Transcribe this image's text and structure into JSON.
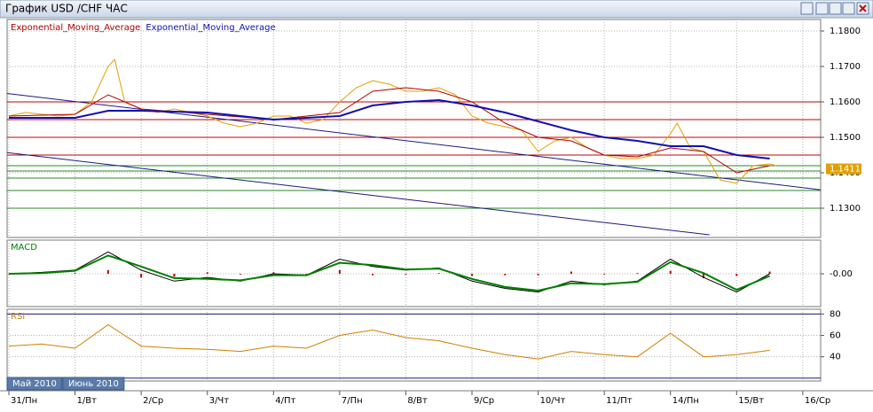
{
  "window": {
    "title": "График USD /CHF  ЧАС"
  },
  "period_tabs": [
    "Май 2010",
    "Июнь 2010"
  ],
  "chart_data": [
    {
      "type": "line",
      "xlim": [
        0,
        12.27
      ],
      "ylim": [
        1.1225,
        1.1825
      ],
      "yticks": [
        {
          "value": 1.13,
          "label": "1.1300"
        },
        {
          "value": 1.14,
          "label": "1.1400"
        },
        {
          "value": 1.15,
          "label": "1.1500"
        },
        {
          "value": 1.16,
          "label": "1.1600"
        },
        {
          "value": 1.17,
          "label": "1.1700"
        },
        {
          "value": 1.18,
          "label": "1.1800"
        }
      ],
      "last_price": {
        "value": 1.1411,
        "label": "1.1411"
      },
      "hlines": [
        {
          "value": 1.16,
          "color": "#c00000"
        },
        {
          "value": 1.155,
          "color": "#c00000"
        },
        {
          "value": 1.15,
          "color": "#c00000"
        },
        {
          "value": 1.145,
          "color": "#c00000"
        },
        {
          "value": 1.142,
          "color": "#2a8a2a"
        },
        {
          "value": 1.1405,
          "color": "#2a8a2a"
        },
        {
          "value": 1.1385,
          "color": "#2a8a2a"
        },
        {
          "value": 1.135,
          "color": "#2a8a2a"
        },
        {
          "value": 1.13,
          "color": "#2a8a2a"
        }
      ],
      "trendlines": [
        {
          "x": [
            -0.13,
            12.27
          ],
          "values": [
            1.1626,
            1.1352
          ],
          "color": "#1a1a80"
        },
        {
          "x": [
            -0.13,
            10.59
          ],
          "values": [
            1.1459,
            1.1225
          ],
          "color": "#1a1a80"
        }
      ],
      "series": [
        {
          "color": "#e0a000",
          "width": 1,
          "x": [
            0,
            0.25,
            0.5,
            0.75,
            1,
            1.25,
            1.5,
            1.6,
            1.75,
            2,
            2.25,
            2.5,
            2.75,
            3,
            3.25,
            3.5,
            3.75,
            4,
            4.25,
            4.5,
            4.75,
            5,
            5.25,
            5.5,
            5.75,
            6,
            6.25,
            6.5,
            6.75,
            7,
            7.25,
            7.5,
            7.75,
            8,
            8.25,
            8.5,
            8.75,
            9,
            9.25,
            9.5,
            9.75,
            10,
            10.1,
            10.3,
            10.5,
            10.75,
            11,
            11.25,
            11.5,
            11.6
          ],
          "values": [
            1.156,
            1.157,
            1.1565,
            1.156,
            1.1565,
            1.16,
            1.17,
            1.172,
            1.16,
            1.158,
            1.157,
            1.158,
            1.157,
            1.156,
            1.154,
            1.153,
            1.154,
            1.156,
            1.156,
            1.154,
            1.155,
            1.16,
            1.164,
            1.166,
            1.165,
            1.163,
            1.163,
            1.164,
            1.162,
            1.156,
            1.154,
            1.153,
            1.152,
            1.146,
            1.149,
            1.15,
            1.147,
            1.145,
            1.144,
            1.144,
            1.145,
            1.151,
            1.154,
            1.147,
            1.146,
            1.138,
            1.137,
            1.142,
            1.1425,
            1.142
          ]
        },
        {
          "name": "Exponential_Moving_Average",
          "color": "#b00000",
          "width": 1,
          "x": [
            0,
            1,
            1.5,
            2,
            3,
            4,
            5,
            5.5,
            6,
            6.5,
            7,
            7.5,
            8,
            8.5,
            9,
            9.5,
            10,
            10.5,
            11,
            11.5
          ],
          "values": [
            1.156,
            1.1565,
            1.162,
            1.158,
            1.1565,
            1.155,
            1.157,
            1.163,
            1.164,
            1.163,
            1.16,
            1.154,
            1.15,
            1.149,
            1.145,
            1.1445,
            1.147,
            1.146,
            1.14,
            1.142
          ]
        },
        {
          "name": "Exponential_Moving_Average",
          "color": "#1010b0",
          "width": 2,
          "x": [
            0,
            1,
            1.5,
            2,
            3,
            4,
            5,
            5.5,
            6,
            6.5,
            7,
            7.5,
            8,
            8.5,
            9,
            9.5,
            10,
            10.5,
            11,
            11.5
          ],
          "values": [
            1.1555,
            1.1555,
            1.1575,
            1.1575,
            1.157,
            1.155,
            1.156,
            1.159,
            1.16,
            1.1605,
            1.159,
            1.157,
            1.1545,
            1.152,
            1.15,
            1.149,
            1.1475,
            1.1475,
            1.145,
            1.144
          ]
        }
      ]
    },
    {
      "type": "line",
      "title": "MACD",
      "xlim": [
        0,
        12.27
      ],
      "ylim": [
        -0.004,
        0.004
      ],
      "yticks": [
        {
          "value": 0,
          "label": "-0.00"
        }
      ],
      "series": [
        {
          "kind": "bar",
          "color": "#c00000",
          "width": 2,
          "x": [
            0,
            0.5,
            1,
            1.5,
            2,
            2.5,
            3,
            3.5,
            4,
            4.5,
            5,
            5.5,
            6,
            6.5,
            7,
            7.5,
            8,
            8.5,
            9,
            9.5,
            10,
            10.5,
            11,
            11.5
          ],
          "values": [
            0,
            0.0001,
            0.0001,
            0.0005,
            -0.0005,
            -0.0004,
            0.0002,
            -0.0001,
            0.0002,
            0,
            0.0005,
            -0.0002,
            -0.0001,
            0.0001,
            -0.0003,
            -0.0002,
            -0.0002,
            0.0003,
            -0.0001,
            0.0001,
            0.0004,
            -0.0006,
            -0.0003,
            0.0003
          ]
        },
        {
          "color": "#000000",
          "width": 1,
          "x": [
            0,
            0.5,
            1,
            1.5,
            2,
            2.5,
            3,
            3.5,
            4,
            4.5,
            5,
            5.5,
            6,
            6.5,
            7,
            7.5,
            8,
            8.5,
            9,
            9.5,
            10,
            10.5,
            11,
            11.5
          ],
          "values": [
            0,
            0.0002,
            0.0005,
            0.003,
            0.0005,
            -0.001,
            -0.0005,
            -0.001,
            0,
            -0.0002,
            0.002,
            0.001,
            0.0005,
            0.0008,
            -0.001,
            -0.002,
            -0.0025,
            -0.001,
            -0.0015,
            -0.001,
            0.002,
            -0.0005,
            -0.0025,
            0
          ]
        },
        {
          "color": "#008000",
          "width": 2,
          "x": [
            0,
            0.5,
            1,
            1.5,
            2,
            2.5,
            3,
            3.5,
            4,
            4.5,
            5,
            5.5,
            6,
            6.5,
            7,
            7.5,
            8,
            8.5,
            9,
            9.5,
            10,
            10.5,
            11,
            11.5
          ],
          "values": [
            0,
            0.0001,
            0.0004,
            0.0025,
            0.001,
            -0.0006,
            -0.0007,
            -0.0009,
            -0.0002,
            -0.0002,
            0.0015,
            0.0012,
            0.0006,
            0.0007,
            -0.0007,
            -0.0018,
            -0.0023,
            -0.0013,
            -0.0014,
            -0.0011,
            0.0016,
            0.0001,
            -0.0022,
            -0.0003
          ]
        }
      ]
    },
    {
      "type": "line",
      "title": "RSI",
      "xlim": [
        0,
        12.27
      ],
      "ylim": [
        19,
        82
      ],
      "yticks": [
        40,
        60,
        80
      ],
      "hlines": [
        {
          "value": 80,
          "color": "#1a1a80"
        },
        {
          "value": 20,
          "color": "#1a1a80"
        }
      ],
      "xticks": [
        {
          "value": 0,
          "label": "31/Пн"
        },
        {
          "value": 1,
          "label": "1/Вт"
        },
        {
          "value": 2,
          "label": "2/Ср"
        },
        {
          "value": 3,
          "label": "3/Чт"
        },
        {
          "value": 4,
          "label": "4/Пт"
        },
        {
          "value": 5,
          "label": "7/Пн"
        },
        {
          "value": 6,
          "label": "8/Вт"
        },
        {
          "value": 7,
          "label": "9/Ср"
        },
        {
          "value": 8,
          "label": "10/Чт"
        },
        {
          "value": 9,
          "label": "11/Пт"
        },
        {
          "value": 10,
          "label": "14/Пн"
        },
        {
          "value": 11,
          "label": "15/Вт"
        },
        {
          "value": 12,
          "label": "16/Ср"
        }
      ],
      "series": [
        {
          "color": "#d08000",
          "width": 1,
          "x": [
            0,
            0.5,
            1,
            1.5,
            2,
            2.5,
            3,
            3.5,
            4,
            4.5,
            5,
            5.5,
            6,
            6.5,
            7,
            7.5,
            8,
            8.5,
            9,
            9.5,
            10,
            10.5,
            11,
            11.5
          ],
          "values": [
            50,
            52,
            48,
            70,
            50,
            48,
            47,
            45,
            50,
            48,
            60,
            65,
            58,
            55,
            48,
            42,
            38,
            45,
            42,
            40,
            62,
            40,
            42,
            46
          ]
        }
      ]
    }
  ]
}
